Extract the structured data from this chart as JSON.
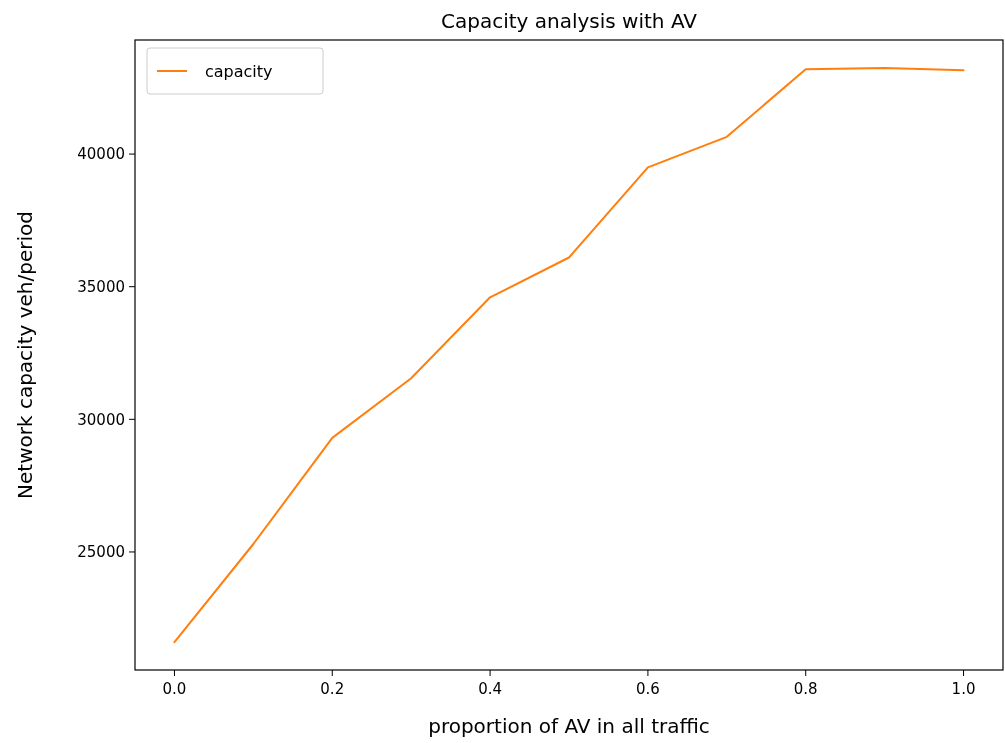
{
  "chart_data": {
    "type": "line",
    "title": "Capacity analysis with AV",
    "xlabel": "proportion of AV in all traffic",
    "ylabel": "Network capacity veh/period",
    "x": [
      0.0,
      0.1,
      0.2,
      0.3,
      0.4,
      0.5,
      0.6,
      0.7,
      0.8,
      0.9,
      1.0
    ],
    "series": [
      {
        "name": "capacity",
        "color": "#ff7f0e",
        "values": [
          21600,
          25300,
          29300,
          31550,
          34600,
          36100,
          39500,
          40650,
          43200,
          43240,
          43160
        ]
      }
    ],
    "xlim": [
      -0.05,
      1.05
    ],
    "xticks": [
      {
        "value": 0,
        "label": "0.0"
      },
      0.2,
      0.4,
      0.6,
      0.8,
      {
        "value": 1,
        "label": "1.0"
      }
    ],
    "ylim": [
      20550,
      44300
    ],
    "yticks": [
      25000,
      30000,
      35000,
      40000
    ],
    "legend": "top left",
    "marker": "none",
    "line_style": "solid",
    "grid": false
  }
}
